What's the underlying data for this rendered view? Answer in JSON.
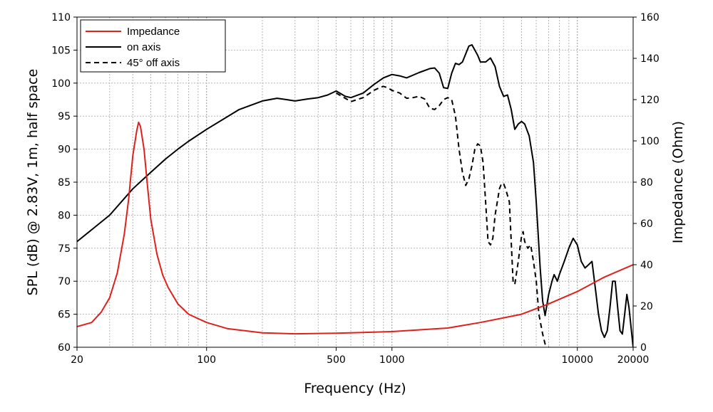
{
  "chart_data": {
    "type": "line",
    "xlabel": "Frequency (Hz)",
    "ylabel": "SPL (dB) @ 2.83V, 1m, half space",
    "y2label": "Impedance (Ohm)",
    "x_scale": "log",
    "xlim": [
      20,
      20000
    ],
    "ylim": [
      60,
      110
    ],
    "y2lim": [
      0,
      160
    ],
    "x_ticks": [
      20,
      100,
      500,
      1000,
      10000,
      20000
    ],
    "x_tick_labels": [
      "20",
      "100",
      "500",
      "1000",
      "10000",
      "20000"
    ],
    "y_ticks": [
      60,
      65,
      70,
      75,
      80,
      85,
      90,
      95,
      100,
      105,
      110
    ],
    "y_tick_labels": [
      "60",
      "65",
      "70",
      "75",
      "80",
      "85",
      "90",
      "95",
      "100",
      "105",
      "110"
    ],
    "y2_ticks": [
      0,
      20,
      40,
      60,
      80,
      100,
      120,
      140,
      160
    ],
    "y2_tick_labels": [
      "0",
      "20",
      "40",
      "60",
      "80",
      "100",
      "120",
      "140",
      "160"
    ],
    "grid": true,
    "legend_position": "top-left",
    "series": [
      {
        "name": "Impedance",
        "axis": "right",
        "color": "#e0201a",
        "style": "solid",
        "points": [
          [
            20,
            10
          ],
          [
            24,
            12
          ],
          [
            27,
            17
          ],
          [
            30,
            24
          ],
          [
            33,
            36
          ],
          [
            36,
            55
          ],
          [
            38,
            72
          ],
          [
            40,
            93
          ],
          [
            42,
            105
          ],
          [
            43,
            109
          ],
          [
            44,
            107
          ],
          [
            46,
            96
          ],
          [
            48,
            78
          ],
          [
            50,
            62
          ],
          [
            54,
            45
          ],
          [
            58,
            35
          ],
          [
            62,
            29
          ],
          [
            70,
            21
          ],
          [
            80,
            16
          ],
          [
            100,
            12
          ],
          [
            130,
            9
          ],
          [
            200,
            7
          ],
          [
            300,
            6.5
          ],
          [
            500,
            6.8
          ],
          [
            1000,
            7.6
          ],
          [
            2000,
            9.3
          ],
          [
            3000,
            12
          ],
          [
            5000,
            16
          ],
          [
            7000,
            21
          ],
          [
            10000,
            27
          ],
          [
            14000,
            34
          ],
          [
            20000,
            40
          ]
        ]
      },
      {
        "name": "on axis",
        "axis": "left",
        "color": "#000000",
        "style": "solid",
        "points": [
          [
            20,
            76
          ],
          [
            30,
            80
          ],
          [
            40,
            84
          ],
          [
            50,
            86.5
          ],
          [
            60,
            88.5
          ],
          [
            70,
            90
          ],
          [
            80,
            91.2
          ],
          [
            100,
            93
          ],
          [
            150,
            96
          ],
          [
            200,
            97.3
          ],
          [
            240,
            97.7
          ],
          [
            270,
            97.5
          ],
          [
            300,
            97.3
          ],
          [
            350,
            97.6
          ],
          [
            400,
            97.8
          ],
          [
            450,
            98.2
          ],
          [
            500,
            98.8
          ],
          [
            560,
            98
          ],
          [
            600,
            97.8
          ],
          [
            700,
            98.5
          ],
          [
            800,
            99.8
          ],
          [
            900,
            100.8
          ],
          [
            1000,
            101.3
          ],
          [
            1100,
            101.1
          ],
          [
            1200,
            100.8
          ],
          [
            1400,
            101.6
          ],
          [
            1600,
            102.2
          ],
          [
            1700,
            102.3
          ],
          [
            1800,
            101.5
          ],
          [
            1900,
            99.3
          ],
          [
            2000,
            99.2
          ],
          [
            2100,
            101.5
          ],
          [
            2200,
            103
          ],
          [
            2300,
            102.8
          ],
          [
            2400,
            103.2
          ],
          [
            2600,
            105.6
          ],
          [
            2700,
            105.8
          ],
          [
            2800,
            105
          ],
          [
            2900,
            104.2
          ],
          [
            3000,
            103.2
          ],
          [
            3200,
            103.2
          ],
          [
            3400,
            103.8
          ],
          [
            3600,
            102.5
          ],
          [
            3800,
            99.5
          ],
          [
            4000,
            98
          ],
          [
            4200,
            98.2
          ],
          [
            4400,
            96
          ],
          [
            4600,
            93
          ],
          [
            4800,
            93.8
          ],
          [
            5000,
            94.2
          ],
          [
            5200,
            93.8
          ],
          [
            5500,
            92
          ],
          [
            5800,
            88
          ],
          [
            6000,
            82
          ],
          [
            6300,
            72
          ],
          [
            6500,
            67
          ],
          [
            6700,
            64.8
          ],
          [
            7000,
            68
          ],
          [
            7300,
            70
          ],
          [
            7500,
            71
          ],
          [
            7800,
            70
          ],
          [
            8000,
            71
          ],
          [
            8500,
            73
          ],
          [
            9000,
            75
          ],
          [
            9500,
            76.5
          ],
          [
            10000,
            75.5
          ],
          [
            10500,
            73
          ],
          [
            11000,
            72
          ],
          [
            11500,
            72.5
          ],
          [
            12000,
            73
          ],
          [
            12500,
            69
          ],
          [
            13000,
            65
          ],
          [
            13500,
            62.5
          ],
          [
            14000,
            61.5
          ],
          [
            14500,
            62.5
          ],
          [
            15000,
            66
          ],
          [
            15500,
            70
          ],
          [
            16000,
            70
          ],
          [
            16500,
            66
          ],
          [
            17000,
            62.5
          ],
          [
            17500,
            62
          ],
          [
            18000,
            65
          ],
          [
            18500,
            68
          ],
          [
            19000,
            66
          ],
          [
            19500,
            63
          ],
          [
            20000,
            60
          ]
        ]
      },
      {
        "name": "45° off axis",
        "axis": "left",
        "color": "#000000",
        "style": "dashed",
        "points": [
          [
            500,
            98.5
          ],
          [
            560,
            97.7
          ],
          [
            600,
            97.2
          ],
          [
            700,
            97.8
          ],
          [
            800,
            98.9
          ],
          [
            870,
            99.4
          ],
          [
            900,
            99.5
          ],
          [
            950,
            99.3
          ],
          [
            1000,
            98.9
          ],
          [
            1100,
            98.5
          ],
          [
            1200,
            97.7
          ],
          [
            1300,
            97.8
          ],
          [
            1400,
            98
          ],
          [
            1500,
            97.6
          ],
          [
            1600,
            96.2
          ],
          [
            1700,
            96
          ],
          [
            1800,
            96.6
          ],
          [
            1900,
            97.5
          ],
          [
            2000,
            97.8
          ],
          [
            2100,
            97.5
          ],
          [
            2200,
            95
          ],
          [
            2300,
            90
          ],
          [
            2400,
            86.5
          ],
          [
            2500,
            84.5
          ],
          [
            2600,
            85.5
          ],
          [
            2700,
            87.5
          ],
          [
            2800,
            90
          ],
          [
            2900,
            90.8
          ],
          [
            3000,
            90.5
          ],
          [
            3100,
            88
          ],
          [
            3200,
            82
          ],
          [
            3300,
            76
          ],
          [
            3400,
            75.5
          ],
          [
            3500,
            76.5
          ],
          [
            3600,
            80
          ],
          [
            3800,
            84
          ],
          [
            3900,
            84.8
          ],
          [
            4000,
            84.8
          ],
          [
            4100,
            84
          ],
          [
            4300,
            82
          ],
          [
            4400,
            76
          ],
          [
            4500,
            70
          ],
          [
            4600,
            69.5
          ],
          [
            4800,
            73
          ],
          [
            4900,
            75
          ],
          [
            5000,
            76.8
          ],
          [
            5100,
            77.5
          ],
          [
            5200,
            76
          ],
          [
            5400,
            75
          ],
          [
            5600,
            75.5
          ],
          [
            5800,
            73
          ],
          [
            6000,
            70
          ],
          [
            6200,
            65
          ],
          [
            6500,
            62
          ],
          [
            6700,
            60.5
          ],
          [
            7000,
            60
          ]
        ]
      }
    ]
  }
}
